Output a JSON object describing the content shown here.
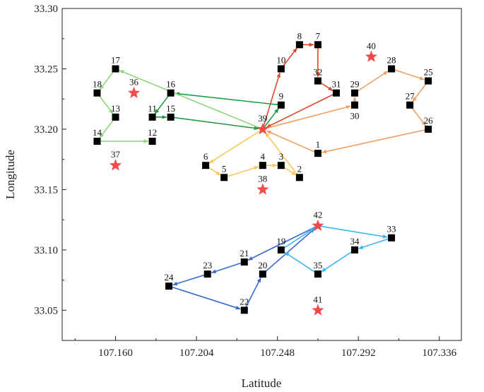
{
  "chart_data": {
    "type": "scatter",
    "title": "",
    "xlabel": "Latitude",
    "ylabel": "Longitude",
    "xlim": [
      107.131,
      107.348
    ],
    "ylim": [
      33.025,
      33.3
    ],
    "xticks": [
      "107.160",
      "107.204",
      "107.248",
      "107.292",
      "107.336"
    ],
    "yticks": [
      "33.05",
      "33.10",
      "33.15",
      "33.20",
      "33.25",
      "33.30"
    ],
    "colors": {
      "depot_star": "#f04a4a",
      "node_square": "#000000",
      "red_route": "#d94a2a",
      "orange_route": "#f0a060",
      "dark_green_route": "#1f9c45",
      "light_green_route": "#8fd67a",
      "yellow_route": "#f7c85a",
      "dark_blue_route": "#3a6bd0",
      "light_blue_route": "#3cb4ec"
    },
    "nodes": [
      {
        "id": "1",
        "x": 107.27,
        "y": 33.18
      },
      {
        "id": "2",
        "x": 107.26,
        "y": 33.16
      },
      {
        "id": "3",
        "x": 107.25,
        "y": 33.17
      },
      {
        "id": "4",
        "x": 107.24,
        "y": 33.17
      },
      {
        "id": "5",
        "x": 107.219,
        "y": 33.16
      },
      {
        "id": "6",
        "x": 107.209,
        "y": 33.17
      },
      {
        "id": "7",
        "x": 107.27,
        "y": 33.27
      },
      {
        "id": "8",
        "x": 107.26,
        "y": 33.27
      },
      {
        "id": "9",
        "x": 107.25,
        "y": 33.22
      },
      {
        "id": "10",
        "x": 107.25,
        "y": 33.25
      },
      {
        "id": "11",
        "x": 107.18,
        "y": 33.21
      },
      {
        "id": "12",
        "x": 107.18,
        "y": 33.19
      },
      {
        "id": "13",
        "x": 107.16,
        "y": 33.21
      },
      {
        "id": "14",
        "x": 107.15,
        "y": 33.19
      },
      {
        "id": "15",
        "x": 107.19,
        "y": 33.21
      },
      {
        "id": "16",
        "x": 107.19,
        "y": 33.23
      },
      {
        "id": "17",
        "x": 107.16,
        "y": 33.25
      },
      {
        "id": "18",
        "x": 107.15,
        "y": 33.23
      },
      {
        "id": "19",
        "x": 107.25,
        "y": 33.1
      },
      {
        "id": "20",
        "x": 107.24,
        "y": 33.08
      },
      {
        "id": "21",
        "x": 107.23,
        "y": 33.09
      },
      {
        "id": "22",
        "x": 107.23,
        "y": 33.05
      },
      {
        "id": "23",
        "x": 107.21,
        "y": 33.08
      },
      {
        "id": "24",
        "x": 107.189,
        "y": 33.07
      },
      {
        "id": "25",
        "x": 107.33,
        "y": 33.24
      },
      {
        "id": "26",
        "x": 107.33,
        "y": 33.2
      },
      {
        "id": "27",
        "x": 107.32,
        "y": 33.22
      },
      {
        "id": "28",
        "x": 107.31,
        "y": 33.25
      },
      {
        "id": "29",
        "x": 107.29,
        "y": 33.23
      },
      {
        "id": "30",
        "x": 107.29,
        "y": 33.22
      },
      {
        "id": "31",
        "x": 107.28,
        "y": 33.23
      },
      {
        "id": "32",
        "x": 107.27,
        "y": 33.24
      },
      {
        "id": "33",
        "x": 107.31,
        "y": 33.11
      },
      {
        "id": "34",
        "x": 107.29,
        "y": 33.1
      },
      {
        "id": "35",
        "x": 107.27,
        "y": 33.08
      }
    ],
    "depots": [
      {
        "id": "36",
        "x": 107.17,
        "y": 33.23
      },
      {
        "id": "37",
        "x": 107.16,
        "y": 33.17
      },
      {
        "id": "38",
        "x": 107.24,
        "y": 33.15
      },
      {
        "id": "39",
        "x": 107.24,
        "y": 33.2
      },
      {
        "id": "40",
        "x": 107.299,
        "y": 33.26
      },
      {
        "id": "41",
        "x": 107.27,
        "y": 33.05
      },
      {
        "id": "42",
        "x": 107.27,
        "y": 33.12
      }
    ],
    "routes": [
      {
        "name": "red",
        "color_key": "red_route",
        "path": [
          "39",
          "10",
          "8",
          "7",
          "32",
          "31",
          "39"
        ]
      },
      {
        "name": "orange",
        "color_key": "orange_route",
        "path": [
          "39",
          "30",
          "29",
          "28",
          "25",
          "27",
          "26",
          "1",
          "39"
        ]
      },
      {
        "name": "dark-green",
        "color_key": "dark_green_route",
        "path": [
          "39",
          "9",
          "16",
          "11",
          "15",
          "39"
        ]
      },
      {
        "name": "light-green",
        "color_key": "light_green_route",
        "path": [
          "39",
          "17",
          "18",
          "13",
          "14",
          "12"
        ]
      },
      {
        "name": "yellow",
        "color_key": "yellow_route",
        "path": [
          "39",
          "6",
          "5",
          "4",
          "3",
          "2",
          "39"
        ]
      },
      {
        "name": "dark-blue",
        "color_key": "dark_blue_route",
        "path": [
          "42",
          "21",
          "23",
          "24",
          "22",
          "20",
          "42"
        ]
      },
      {
        "name": "light-blue",
        "color_key": "light_blue_route",
        "path": [
          "42",
          "33",
          "34",
          "35",
          "19",
          "42"
        ]
      }
    ]
  }
}
